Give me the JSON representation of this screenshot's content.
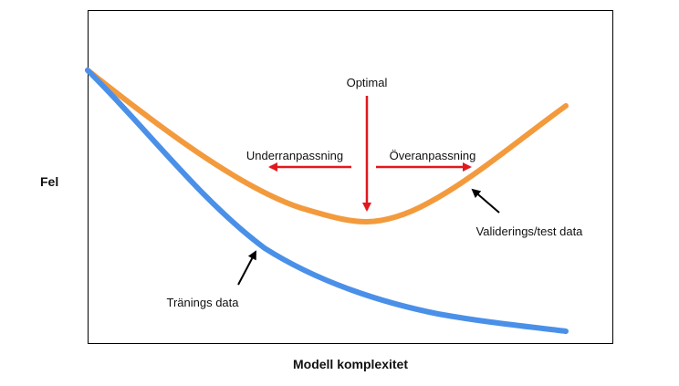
{
  "axes": {
    "y_label": "Fel",
    "x_label": "Modell komplexitet"
  },
  "annotations": {
    "optimal": "Optimal",
    "underfitting": "Underranpassning",
    "overfitting": "Överanpassning",
    "validation_curve": "Validerings/test data",
    "training_curve": "Tränings data"
  },
  "colors": {
    "training_curve": "#4a90e8",
    "validation_curve": "#f39a3d",
    "optimal_arrows": "#e0191f",
    "frame": "#000000",
    "pointer_arrows": "#000000"
  }
}
